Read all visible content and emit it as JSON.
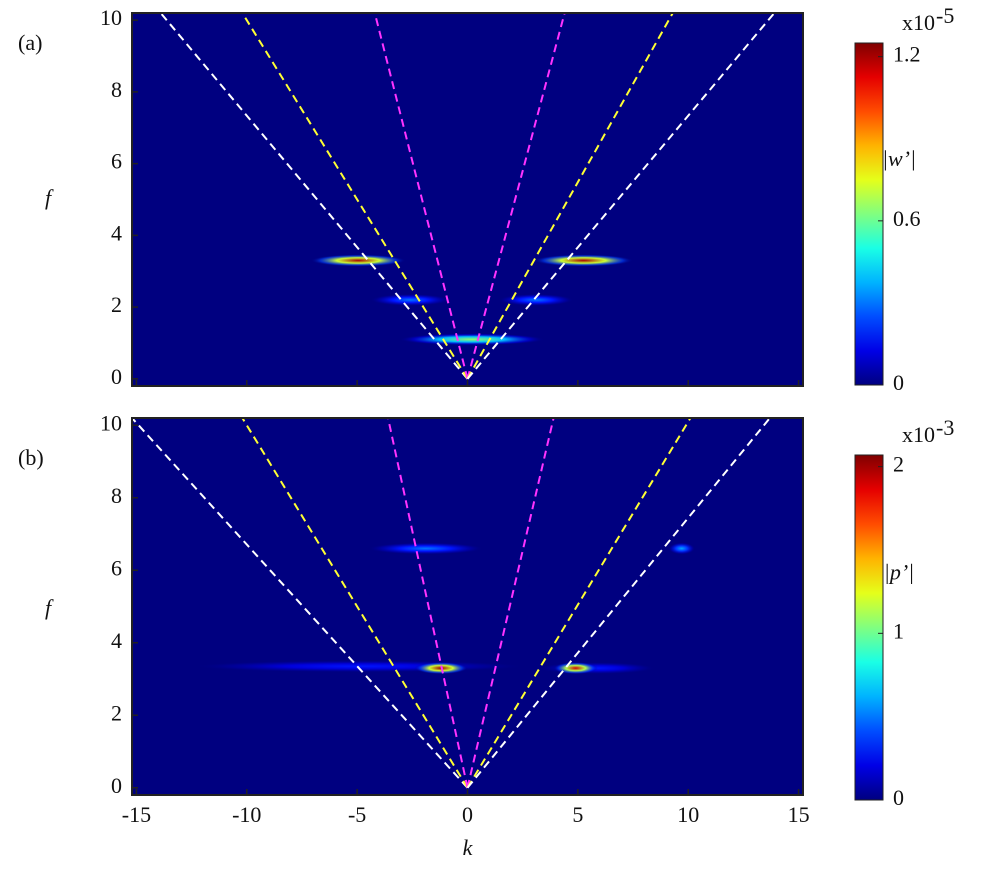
{
  "chart_data": [
    {
      "type": "heatmap",
      "panel_label": "(a)",
      "ylabel": "f",
      "xlim": [
        -15.2,
        15.2
      ],
      "ylim": [
        -0.2,
        10.2
      ],
      "xticks": [
        -15,
        -10,
        -5,
        0,
        5,
        10,
        15
      ],
      "yticks": [
        0,
        2,
        4,
        6,
        8,
        10
      ],
      "colormap": "jet",
      "clim": [
        0,
        1.25
      ],
      "cticks": [
        0,
        0.6,
        1.2
      ],
      "colorbar_label": "|w’|",
      "colorbar_scale": "x10",
      "colorbar_exponent": "-5",
      "lines": [
        {
          "color": "#ffffff",
          "k": [
            0,
            -13.9
          ],
          "f": [
            0,
            10.2
          ]
        },
        {
          "color": "#ffff33",
          "k": [
            0,
            -10.2
          ],
          "f": [
            0,
            10.2
          ]
        },
        {
          "color": "#ff33ff",
          "k": [
            0,
            -4.2
          ],
          "f": [
            0,
            10.2
          ]
        },
        {
          "color": "#ff33ff",
          "k": [
            0,
            4.4
          ],
          "f": [
            0,
            10.2
          ]
        },
        {
          "color": "#ffff33",
          "k": [
            0,
            9.3
          ],
          "f": [
            0,
            10.2
          ]
        },
        {
          "color": "#ffffff",
          "k": [
            0,
            13.9
          ],
          "f": [
            0,
            10.2
          ]
        }
      ],
      "spots": [
        {
          "k": [
            -4.4,
            -0.8
          ],
          "f": 2.2,
          "value": 0.3
        },
        {
          "k": [
            1.4,
            4.8
          ],
          "f": 2.2,
          "value": 0.3
        },
        {
          "k": [
            -3.1,
            3.5
          ],
          "f": 1.1,
          "value": 0.65
        },
        {
          "k": [
            -7.1,
            -2.8
          ],
          "f": 3.3,
          "value": 1.2
        },
        {
          "k": [
            3,
            7.5
          ],
          "f": 3.3,
          "value": 1.2
        }
      ]
    },
    {
      "type": "heatmap",
      "panel_label": "(b)",
      "ylabel": "f",
      "xlabel": "k",
      "xlim": [
        -15.2,
        15.2
      ],
      "ylim": [
        -0.2,
        10.2
      ],
      "xticks": [
        -15,
        -10,
        -5,
        0,
        5,
        10,
        15
      ],
      "yticks": [
        0,
        2,
        4,
        6,
        8,
        10
      ],
      "colormap": "jet",
      "clim": [
        0,
        2.07
      ],
      "cticks": [
        0,
        1,
        2
      ],
      "colorbar_label": "|p’|",
      "colorbar_scale": "x10",
      "colorbar_exponent": "-3",
      "lines": [
        {
          "color": "#ffffff",
          "k": [
            0,
            -15.2
          ],
          "f": [
            0,
            10.2
          ]
        },
        {
          "color": "#ffff33",
          "k": [
            0,
            -10.2
          ],
          "f": [
            0,
            10.2
          ]
        },
        {
          "color": "#ff33ff",
          "k": [
            0,
            -3.6
          ],
          "f": [
            0,
            10.2
          ]
        },
        {
          "color": "#ff33ff",
          "k": [
            0,
            3.9
          ],
          "f": [
            0,
            10.2
          ]
        },
        {
          "color": "#ffff33",
          "k": [
            0,
            10.1
          ],
          "f": [
            0,
            10.2
          ]
        },
        {
          "color": "#ffffff",
          "k": [
            0,
            13.7
          ],
          "f": [
            0,
            10.2
          ]
        }
      ],
      "spots": [
        {
          "k": [
            -12.4,
            2.6
          ],
          "f": 3.35,
          "value": 0.3
        },
        {
          "k": [
            3.2,
            8.5
          ],
          "f": 3.3,
          "value": 0.3
        },
        {
          "k": [
            -4.5,
            0.7
          ],
          "f": 6.6,
          "value": 0.5
        },
        {
          "k": [
            9.1,
            10.3
          ],
          "f": 6.6,
          "value": 0.6
        },
        {
          "k": [
            -2.4,
            0
          ],
          "f": 3.3,
          "value": 2
        },
        {
          "k": [
            3.9,
            5.9
          ],
          "f": 3.3,
          "value": 1.9
        }
      ]
    }
  ]
}
